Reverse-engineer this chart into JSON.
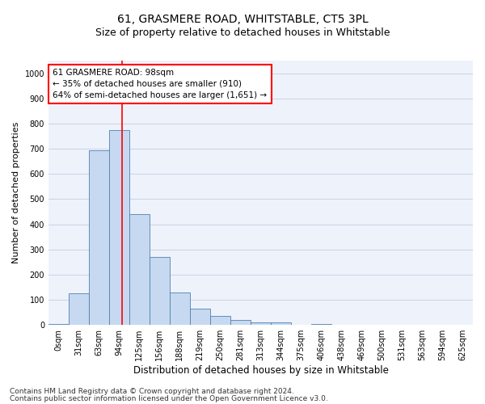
{
  "title1": "61, GRASMERE ROAD, WHITSTABLE, CT5 3PL",
  "title2": "Size of property relative to detached houses in Whitstable",
  "xlabel": "Distribution of detached houses by size in Whitstable",
  "ylabel": "Number of detached properties",
  "categories": [
    "0sqm",
    "31sqm",
    "63sqm",
    "94sqm",
    "125sqm",
    "156sqm",
    "188sqm",
    "219sqm",
    "250sqm",
    "281sqm",
    "313sqm",
    "344sqm",
    "375sqm",
    "406sqm",
    "438sqm",
    "469sqm",
    "500sqm",
    "531sqm",
    "563sqm",
    "594sqm",
    "625sqm"
  ],
  "values": [
    5,
    125,
    695,
    775,
    440,
    270,
    130,
    65,
    35,
    20,
    10,
    10,
    0,
    5,
    0,
    0,
    0,
    0,
    0,
    0,
    0
  ],
  "bar_color": "#c6d9f0",
  "bar_edge_color": "#5080b0",
  "annotation_text": "61 GRASMERE ROAD: 98sqm\n← 35% of detached houses are smaller (910)\n64% of semi-detached houses are larger (1,651) →",
  "annotation_box_color": "white",
  "annotation_box_edge_color": "red",
  "vline_color": "red",
  "ylim": [
    0,
    1050
  ],
  "yticks": [
    0,
    100,
    200,
    300,
    400,
    500,
    600,
    700,
    800,
    900,
    1000
  ],
  "footnote1": "Contains HM Land Registry data © Crown copyright and database right 2024.",
  "footnote2": "Contains public sector information licensed under the Open Government Licence v3.0.",
  "grid_color": "#c8d4e8",
  "background_color": "#eef2fa",
  "title1_fontsize": 10,
  "title2_fontsize": 9,
  "xlabel_fontsize": 8.5,
  "ylabel_fontsize": 8,
  "tick_fontsize": 7,
  "annot_fontsize": 7.5,
  "footnote_fontsize": 6.5
}
